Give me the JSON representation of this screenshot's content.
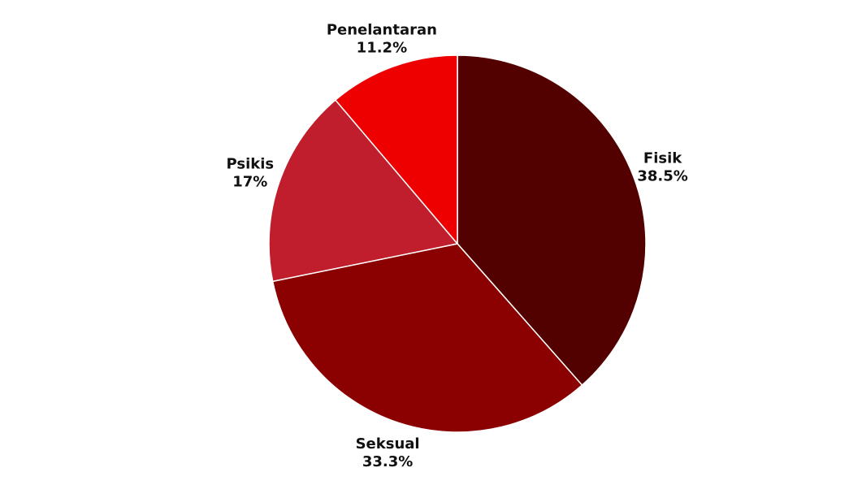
{
  "chart_data": {
    "type": "pie",
    "title": "",
    "start_angle_deg": 0,
    "direction": "clockwise",
    "slices": [
      {
        "label": "Fisik",
        "value": 38.5,
        "value_label": "38.5%",
        "color": "#530000"
      },
      {
        "label": "Seksual",
        "value": 33.3,
        "value_label": "33.3%",
        "color": "#8b0000"
      },
      {
        "label": "Psikis",
        "value": 17,
        "value_label": "17%",
        "color": "#c01e2c"
      },
      {
        "label": "Penelantaran",
        "value": 11.2,
        "value_label": "11.2%",
        "color": "#ee0000"
      }
    ]
  }
}
